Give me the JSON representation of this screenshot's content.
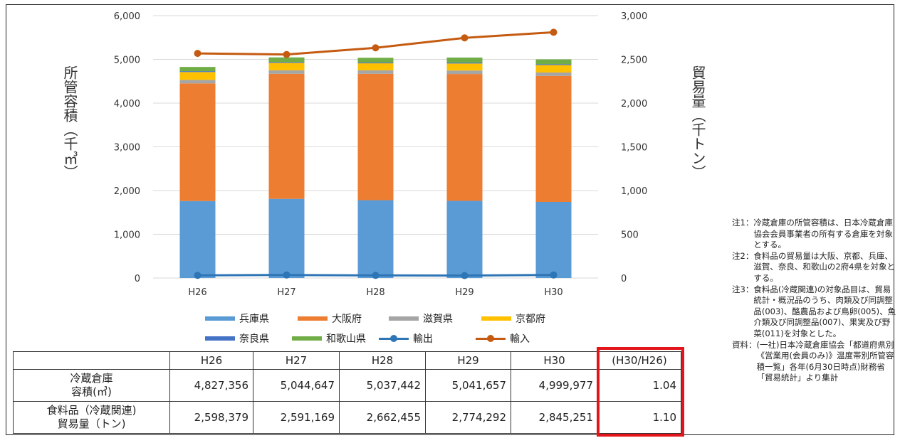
{
  "chart_data": {
    "type": "bar",
    "categories": [
      "H26",
      "H27",
      "H28",
      "H29",
      "H30"
    ],
    "left_axis": {
      "label": "所管容積（千㎥）",
      "ticks": [
        "0",
        "1,000",
        "2,000",
        "3,000",
        "4,000",
        "5,000",
        "6,000"
      ],
      "ylim": [
        0,
        6000
      ]
    },
    "right_axis": {
      "label": "貿易量（千トン）",
      "ticks": [
        "0",
        "500",
        "1,000",
        "1,500",
        "2,000",
        "2,500",
        "3,000"
      ],
      "ylim": [
        0,
        3000
      ]
    },
    "stacked_series": [
      {
        "name": "兵庫県",
        "color": "#5b9bd5",
        "values": [
          1760,
          1810,
          1780,
          1765,
          1740
        ]
      },
      {
        "name": "大阪府",
        "color": "#ed7d31",
        "values": [
          2690,
          2860,
          2890,
          2900,
          2880
        ]
      },
      {
        "name": "滋賀県",
        "color": "#a5a5a5",
        "values": [
          80,
          80,
          80,
          80,
          80
        ]
      },
      {
        "name": "京都府",
        "color": "#ffc000",
        "values": [
          180,
          170,
          160,
          160,
          170
        ]
      },
      {
        "name": "奈良県",
        "color": "#4472c4",
        "values": [
          20,
          20,
          20,
          20,
          20
        ]
      },
      {
        "name": "和歌山県",
        "color": "#70ad47",
        "values": [
          97,
          105,
          107,
          117,
          110
        ]
      }
    ],
    "line_series": [
      {
        "name": "輸出",
        "color": "#2e75b6",
        "axis": "right",
        "values": [
          30,
          35,
          30,
          28,
          35
        ]
      },
      {
        "name": "輸入",
        "color": "#c55a11",
        "axis": "right",
        "values": [
          2568,
          2556,
          2632,
          2746,
          2810
        ]
      }
    ],
    "grid": true,
    "legend_position": "bottom"
  },
  "table": {
    "headers": [
      "",
      "H26",
      "H27",
      "H28",
      "H29",
      "H30",
      "(H30/H26)"
    ],
    "rows": [
      {
        "label_line1": "冷蔵倉庫",
        "label_line2": "容積(㎥)",
        "values": [
          "4,827,356",
          "5,044,647",
          "5,037,442",
          "5,041,657",
          "4,999,977",
          "1.04"
        ]
      },
      {
        "label_line1": "食料品（冷蔵関連)",
        "label_line2": "貿易量（トン)",
        "values": [
          "2,598,379",
          "2,591,169",
          "2,662,455",
          "2,774,292",
          "2,845,251",
          "1.10"
        ]
      }
    ]
  },
  "notes": [
    {
      "label": "注1：",
      "text": "冷蔵倉庫の所管容積は、日本冷蔵倉庫協会会員事業者の所有する倉庫を対象とする。"
    },
    {
      "label": "注2：",
      "text": "食料品の貿易量は大阪、京都、兵庫、滋賀、奈良、和歌山の2府4県を対象とする。"
    },
    {
      "label": "注3：",
      "text": "食料品(冷蔵関連)の対象品目は、貿易統計・概況品のうち、肉類及び同調整品(003)、酪農品および鳥卵(005)、魚介類及び同調整品(007)、果実及び野菜(011)を対象とした。"
    },
    {
      "label": "資料：",
      "text": "(一社)日本冷蔵倉庫協会「都道府県別《営業用(会員のみ)》温度帯別所管容積一覧」各年(6月30日時点)財務省「貿易統計」より集計"
    }
  ]
}
